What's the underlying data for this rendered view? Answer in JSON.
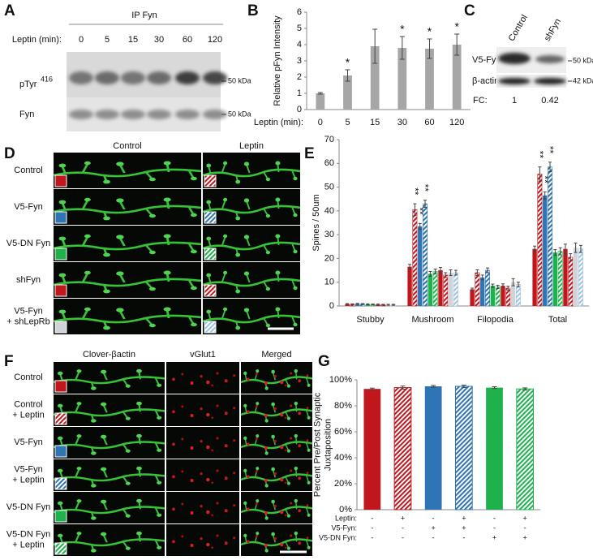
{
  "panel_labels": [
    "A",
    "B",
    "C",
    "D",
    "E",
    "F",
    "G"
  ],
  "panel_a": {
    "ip_label": "IP Fyn",
    "leptin_label": "Leptin (min):",
    "times": [
      0,
      5,
      15,
      30,
      60,
      120
    ],
    "rows": [
      {
        "label": "pTyr",
        "label_sup": "416",
        "marker": "50 kDa"
      },
      {
        "label": "Fyn",
        "marker": "50 kDa"
      }
    ]
  },
  "panel_c": {
    "columns": [
      "Control",
      "shFyn"
    ],
    "rows": [
      {
        "label": "V5-Fyn",
        "marker": "50 kDa"
      },
      {
        "label": "β-actin",
        "marker": "42 kDa"
      }
    ],
    "fc_label": "FC:",
    "fc_values": [
      1,
      0.42
    ]
  },
  "panel_d": {
    "columns": [
      "Control",
      "Leptin"
    ],
    "rows": [
      [
        "Control"
      ],
      [
        "V5-Fyn"
      ],
      [
        "V5-DN Fyn"
      ],
      [
        "shFyn"
      ],
      [
        "V5-Fyn",
        "+ shLepRb"
      ]
    ],
    "square_colors": [
      [
        "#c0161c",
        "#c0161c"
      ],
      [
        "#2e75b6",
        "#2e75b6"
      ],
      [
        "#1fb14c",
        "#1fb14c"
      ],
      [
        "#c0161c",
        "#c0161c"
      ],
      [
        "#d0d4d8",
        "#9dc3e6"
      ]
    ]
  },
  "panel_f": {
    "columns": [
      "Clover-βactin",
      "vGlut1",
      "Merged"
    ],
    "rows": [
      [
        "Control"
      ],
      [
        "Control",
        "+ Leptin"
      ],
      [
        "V5-Fyn"
      ],
      [
        "V5-Fyn",
        "+ Leptin"
      ],
      [
        "V5-DN Fyn"
      ],
      [
        "V5-DN Fyn",
        "+ Leptin"
      ]
    ],
    "square_colors": [
      "#c0161c",
      "#c0161c",
      "#2e75b6",
      "#2e75b6",
      "#1fb14c",
      "#1fb14c"
    ],
    "square_hatched": [
      false,
      true,
      false,
      true,
      false,
      true
    ]
  },
  "chart_data": [
    {
      "type": "bar",
      "ylabel": "Relative pFyn Intensity",
      "xlabel": "Leptin (min):",
      "categories": [
        "0",
        "5",
        "15",
        "30",
        "60",
        "120"
      ],
      "values": [
        1,
        2.1,
        3.9,
        3.8,
        3.75,
        4.0
      ],
      "errors": [
        0.05,
        0.35,
        1.05,
        0.7,
        0.6,
        0.65
      ],
      "significance": [
        null,
        "*",
        null,
        "*",
        "*",
        "*"
      ],
      "color": "#a6a6a6",
      "ylim": [
        0,
        6
      ],
      "yticks": [
        0,
        1,
        2,
        3,
        4,
        5,
        6
      ]
    },
    {
      "type": "grouped-bar",
      "ylabel": "Spines / 50um",
      "categories": [
        "Stubby",
        "Mushroom",
        "Filopodia",
        "Total"
      ],
      "series": [
        {
          "color": "#c0161c",
          "hatched": false,
          "values": [
            0.8,
            16.5,
            7,
            24
          ],
          "errors": [
            0.2,
            1,
            0.5,
            1.2
          ]
        },
        {
          "color": "#c0161c",
          "hatched": true,
          "values": [
            0.7,
            40.5,
            14,
            55.5
          ],
          "errors": [
            0.2,
            2.5,
            1.2,
            3
          ],
          "significance": [
            null,
            "**",
            null,
            "**"
          ]
        },
        {
          "color": "#2e75b6",
          "hatched": false,
          "values": [
            0.9,
            33.5,
            12,
            46.5
          ],
          "errors": [
            0.2,
            1.2,
            1,
            1.5
          ],
          "significance": [
            null,
            "**",
            null,
            "**"
          ]
        },
        {
          "color": "#2e75b6",
          "hatched": true,
          "values": [
            0.8,
            43,
            15,
            58.5
          ],
          "errors": [
            0.2,
            1.5,
            1,
            2
          ],
          "significance": [
            null,
            "**",
            null,
            "**"
          ]
        },
        {
          "color": "#1fb14c",
          "hatched": false,
          "values": [
            0.7,
            13.5,
            8.5,
            22.5
          ],
          "errors": [
            0.2,
            1,
            0.7,
            1.2
          ]
        },
        {
          "color": "#1fb14c",
          "hatched": true,
          "values": [
            0.6,
            14.5,
            8,
            23
          ],
          "errors": [
            0.2,
            1,
            0.7,
            1.5
          ]
        },
        {
          "color": "#c0161c",
          "hatched": false,
          "values": [
            0.6,
            15,
            8.5,
            24
          ],
          "errors": [
            0.2,
            1.2,
            0.8,
            2
          ]
        },
        {
          "color": "#c0161c",
          "hatched": true,
          "values": [
            0.5,
            13,
            7.5,
            20.5
          ],
          "errors": [
            0.2,
            1,
            0.8,
            1.5
          ]
        },
        {
          "color": "#d0d4d8",
          "hatched": false,
          "values": [
            0.5,
            14,
            10,
            24.5
          ],
          "errors": [
            0.2,
            1.2,
            1.5,
            2
          ]
        },
        {
          "color": "#9dc3e6",
          "hatched": true,
          "values": [
            0.5,
            14,
            9,
            24
          ],
          "errors": [
            0.2,
            1,
            1,
            1.5
          ]
        }
      ],
      "ylim": [
        0,
        70
      ],
      "yticks": [
        0,
        10,
        20,
        30,
        40,
        50,
        60,
        70
      ]
    },
    {
      "type": "bar",
      "ylabel": [
        "Percent Pre/Post Synaptic",
        "Juxtaposition"
      ],
      "values": [
        93,
        94,
        95,
        95,
        94,
        93
      ],
      "errors": [
        0.6,
        1.2,
        0.7,
        0.9,
        0.7,
        0.8
      ],
      "colors": [
        "#c0161c",
        "#c0161c",
        "#2e75b6",
        "#2e75b6",
        "#1fb14c",
        "#1fb14c"
      ],
      "hatched": [
        false,
        true,
        false,
        true,
        false,
        true
      ],
      "ylim": [
        0,
        100
      ],
      "yticks": [
        {
          "value": 0,
          "label": "0%"
        },
        {
          "value": 20,
          "label": "20%"
        },
        {
          "value": 40,
          "label": "40%"
        },
        {
          "value": 60,
          "label": "60%"
        },
        {
          "value": 80,
          "label": "80%"
        },
        {
          "value": 100,
          "label": "100%"
        }
      ],
      "condition_rows": [
        {
          "label": "Leptin:",
          "marks": [
            "-",
            "+",
            "-",
            "+",
            "-",
            "+"
          ]
        },
        {
          "label": "V5-Fyn:",
          "marks": [
            "-",
            "-",
            "+",
            "+",
            "-",
            "-"
          ]
        },
        {
          "label": "V5-DN Fyn:",
          "marks": [
            "-",
            "-",
            "-",
            "-",
            "+",
            "+"
          ]
        }
      ]
    }
  ]
}
